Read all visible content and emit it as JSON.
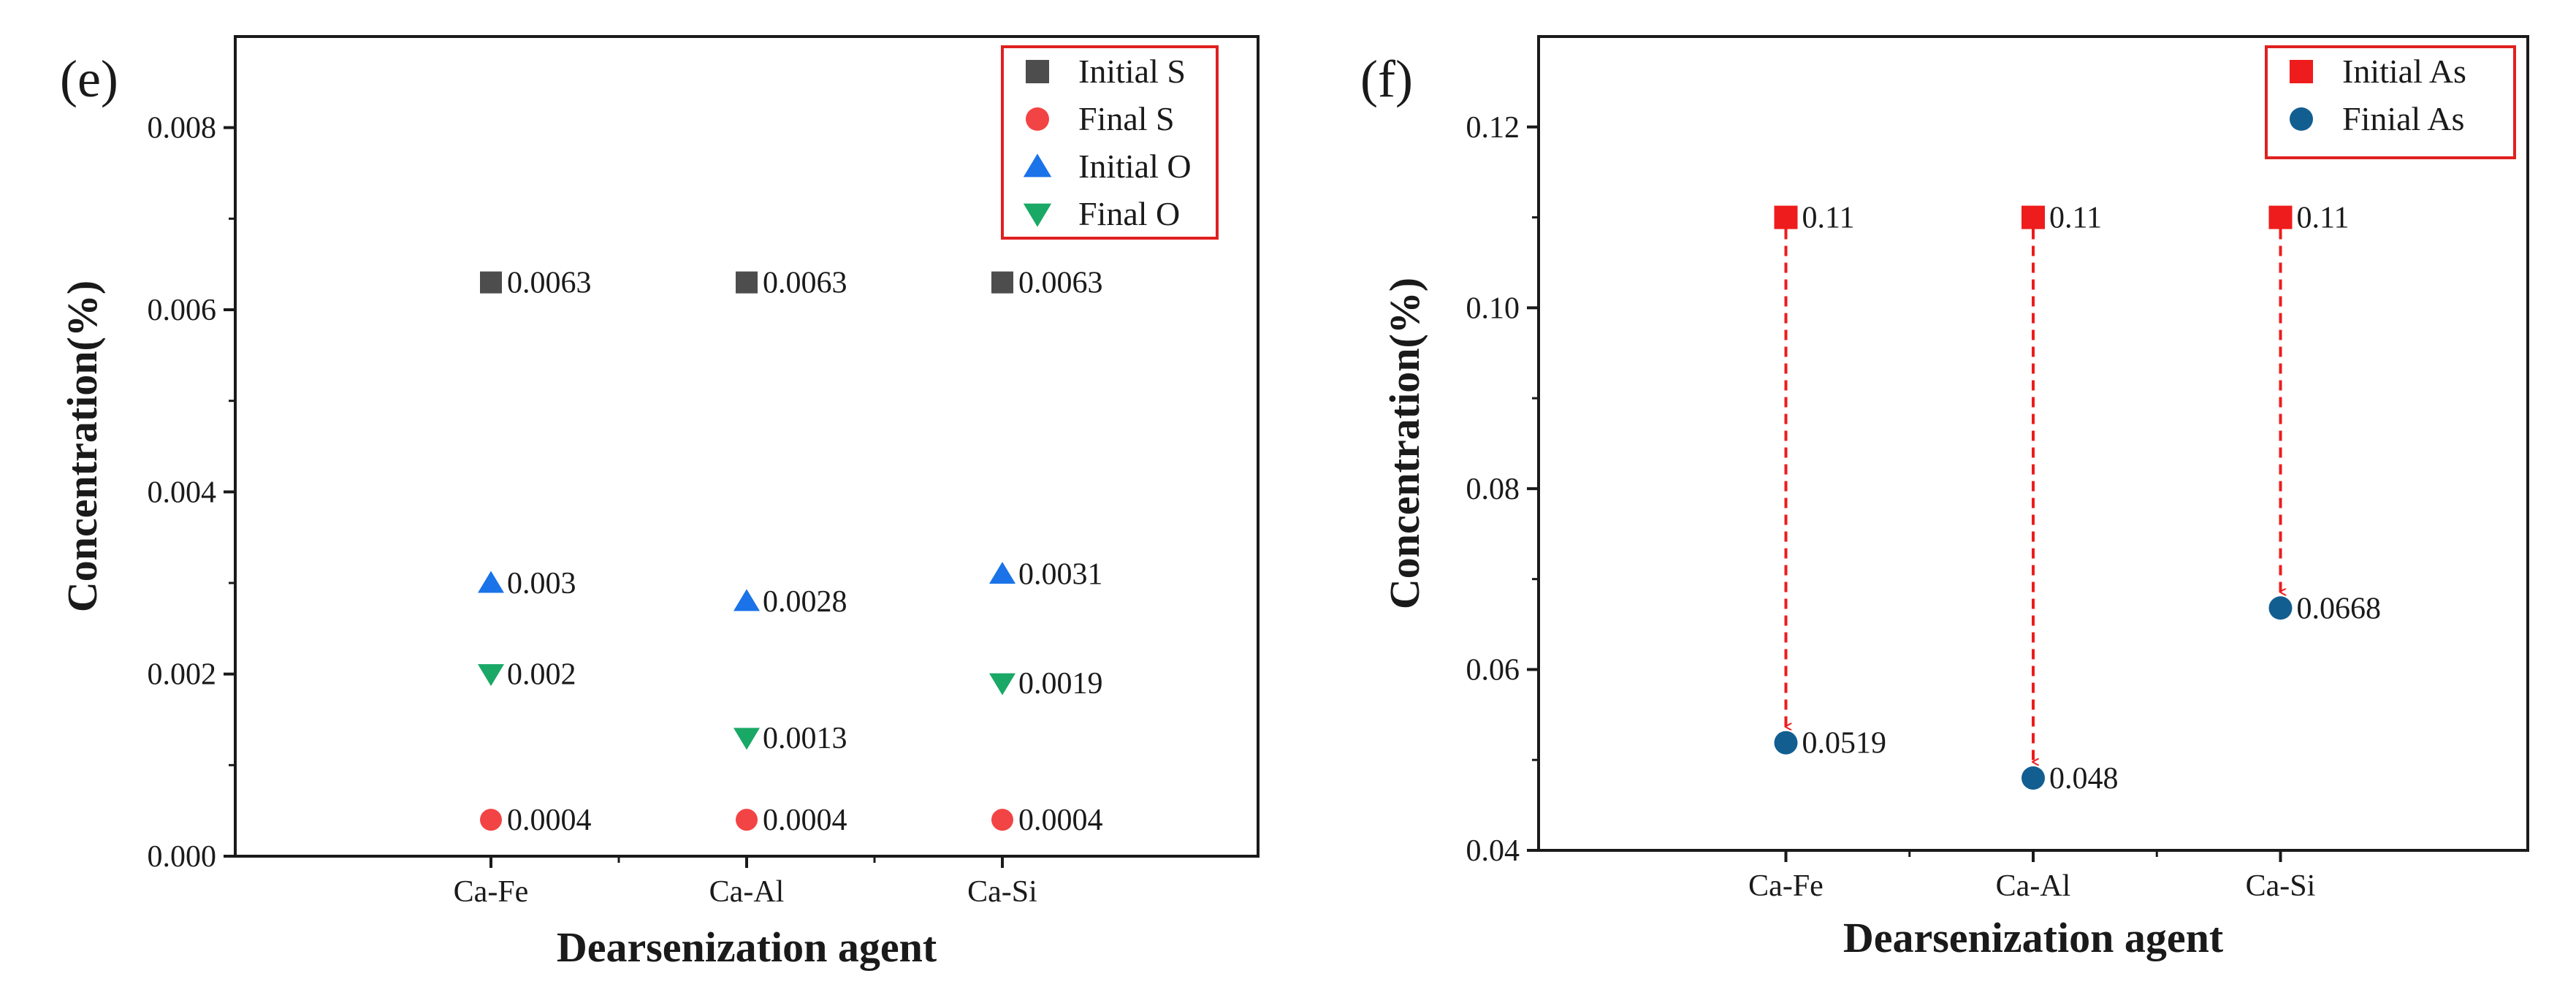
{
  "chart_data": [
    {
      "type": "scatter",
      "panel_label": "(e)",
      "title": "",
      "xlabel": "Dearsenization agent",
      "ylabel": "Concentration(%)",
      "categories": [
        "Ca-Fe",
        "Ca-Al",
        "Ca-Si"
      ],
      "ylim": [
        0,
        0.009
      ],
      "yticks": [
        0.0,
        0.002,
        0.004,
        0.006,
        0.008
      ],
      "ytick_labels": [
        "0.000",
        "0.002",
        "0.004",
        "0.006",
        "0.008"
      ],
      "grid": false,
      "legend_position": "top-right",
      "series": [
        {
          "name": "Initial S",
          "marker": "square",
          "color": "#4d4d4d",
          "values": [
            0.0063,
            0.0063,
            0.0063
          ],
          "labels": [
            "0.0063",
            "0.0063",
            "0.0063"
          ]
        },
        {
          "name": "Final S",
          "marker": "circle",
          "color": "#f24444",
          "values": [
            0.0004,
            0.0004,
            0.0004
          ],
          "labels": [
            "0.0004",
            "0.0004",
            "0.0004"
          ]
        },
        {
          "name": "Initial O",
          "marker": "triangle-up",
          "color": "#1a73e8",
          "values": [
            0.003,
            0.0028,
            0.0031
          ],
          "labels": [
            "0.003",
            "0.0028",
            "0.0031"
          ]
        },
        {
          "name": "Final O",
          "marker": "triangle-down",
          "color": "#1aa866",
          "values": [
            0.002,
            0.0013,
            0.0019
          ],
          "labels": [
            "0.002",
            "0.0013",
            "0.0019"
          ]
        }
      ]
    },
    {
      "type": "scatter",
      "panel_label": "(f)",
      "title": "",
      "xlabel": "Dearsenization agent",
      "ylabel": "Concentration(%)",
      "categories": [
        "Ca-Fe",
        "Ca-Al",
        "Ca-Si"
      ],
      "ylim": [
        0.04,
        0.13
      ],
      "yticks": [
        0.04,
        0.06,
        0.08,
        0.1,
        0.12
      ],
      "ytick_labels": [
        "0.04",
        "0.06",
        "0.08",
        "0.10",
        "0.12"
      ],
      "grid": false,
      "legend_position": "top-right",
      "arrows": "dashed red arrows from Initial As to Finial As",
      "arrow_color": "#ee1c1c",
      "series": [
        {
          "name": "Initial As",
          "marker": "square",
          "color": "#ee1c1c",
          "values": [
            0.11,
            0.11,
            0.11
          ],
          "labels": [
            "0.11",
            "0.11",
            "0.11"
          ]
        },
        {
          "name": "Finial As",
          "marker": "circle",
          "color": "#125e91",
          "values": [
            0.0519,
            0.048,
            0.0668
          ],
          "labels": [
            "0.0519",
            "0.048",
            "0.0668"
          ]
        }
      ]
    }
  ],
  "colors": {
    "axis": "#1a1a1a",
    "legend_border": "#e02020"
  }
}
